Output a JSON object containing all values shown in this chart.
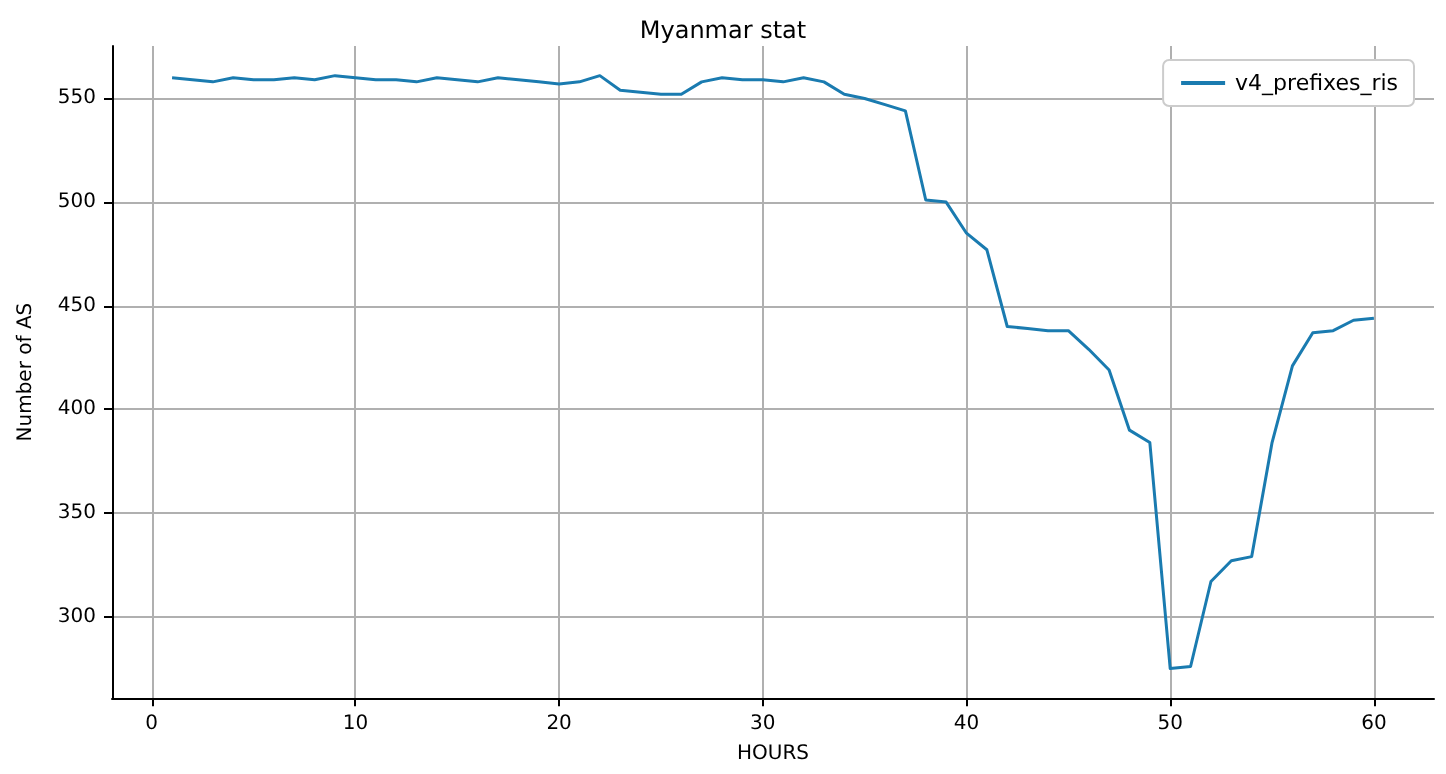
{
  "chart_data": {
    "type": "line",
    "title": "Myanmar stat",
    "xlabel": "HOURS",
    "ylabel": "Number of AS",
    "x": [
      1,
      2,
      3,
      4,
      5,
      6,
      7,
      8,
      9,
      10,
      11,
      12,
      13,
      14,
      15,
      16,
      17,
      18,
      19,
      20,
      21,
      22,
      23,
      24,
      25,
      26,
      27,
      28,
      29,
      30,
      31,
      32,
      33,
      34,
      35,
      36,
      37,
      38,
      39,
      40,
      41,
      42,
      43,
      44,
      45,
      46,
      47,
      48,
      49,
      50,
      51,
      52,
      53,
      54,
      55,
      56,
      57,
      58,
      59,
      60
    ],
    "series": [
      {
        "name": "v4_prefixes_ris",
        "color": "#1a7bb0",
        "values": [
          560,
          559,
          558,
          560,
          559,
          559,
          560,
          559,
          561,
          560,
          559,
          559,
          558,
          560,
          559,
          558,
          560,
          559,
          558,
          557,
          558,
          561,
          554,
          553,
          552,
          552,
          558,
          560,
          559,
          559,
          558,
          560,
          558,
          552,
          550,
          547,
          544,
          501,
          500,
          485,
          477,
          440,
          439,
          438,
          438,
          429,
          419,
          390,
          384,
          275,
          276,
          317,
          327,
          329,
          384,
          421,
          437,
          438,
          443,
          444
        ]
      }
    ],
    "xlim": [
      -1.95,
      62.95
    ],
    "xticks": [
      0,
      10,
      20,
      30,
      40,
      50,
      60
    ],
    "ylim": [
      260.7,
      575.3
    ],
    "yticks": [
      300,
      350,
      400,
      450,
      500,
      550
    ],
    "grid": true,
    "legend": "top right",
    "marker": "none",
    "line_style": "solid"
  }
}
